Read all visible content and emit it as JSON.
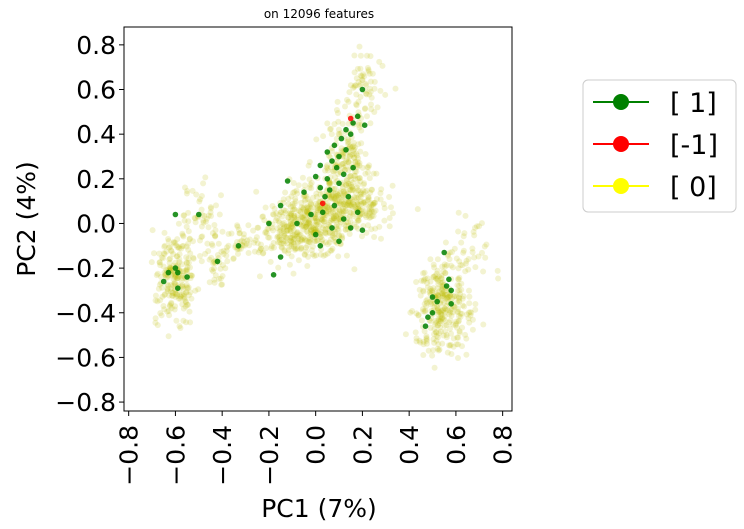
{
  "chart_data": {
    "type": "scatter",
    "title": "on 12096 features",
    "xlabel": "PC1 (7%)",
    "ylabel": "PC2 (4%)",
    "xlim": [
      -0.82,
      0.84
    ],
    "ylim": [
      -0.84,
      0.88
    ],
    "xticks": [
      -0.8,
      -0.6,
      -0.4,
      -0.2,
      0.0,
      0.2,
      0.4,
      0.6,
      0.8
    ],
    "xtick_labels": [
      "−0.8",
      "−0.6",
      "−0.4",
      "−0.2",
      "0.0",
      "0.2",
      "0.4",
      "0.6",
      "0.8"
    ],
    "yticks": [
      0.8,
      0.6,
      0.4,
      0.2,
      0.0,
      -0.2,
      -0.4,
      -0.6,
      -0.8
    ],
    "ytick_labels": [
      "0.8",
      "0.6",
      "0.4",
      "0.2",
      "0.0",
      "−0.2",
      "−0.4",
      "−0.6",
      "−0.8"
    ],
    "grid": false,
    "legend_position": "outside-right",
    "series": [
      {
        "name": "[ 0]",
        "color": "#bfbf00",
        "clusters": [
          {
            "cx": 0.0,
            "cy": 0.02,
            "sx": 0.09,
            "sy": 0.08,
            "n": 380
          },
          {
            "cx": 0.13,
            "cy": 0.28,
            "sx": 0.05,
            "sy": 0.13,
            "n": 220
          },
          {
            "cx": 0.2,
            "cy": 0.62,
            "sx": 0.04,
            "sy": 0.08,
            "n": 60
          },
          {
            "cx": 0.18,
            "cy": 0.08,
            "sx": 0.06,
            "sy": 0.06,
            "n": 140
          },
          {
            "cx": -0.12,
            "cy": -0.05,
            "sx": 0.06,
            "sy": 0.06,
            "n": 120
          },
          {
            "cx": -0.6,
            "cy": -0.24,
            "sx": 0.04,
            "sy": 0.1,
            "n": 220
          },
          {
            "cx": -0.5,
            "cy": 0.05,
            "sx": 0.04,
            "sy": 0.08,
            "n": 50
          },
          {
            "cx": -0.42,
            "cy": -0.18,
            "sx": 0.03,
            "sy": 0.07,
            "n": 40
          },
          {
            "cx": -0.3,
            "cy": -0.08,
            "sx": 0.03,
            "sy": 0.05,
            "n": 40
          },
          {
            "cx": 0.55,
            "cy": -0.37,
            "sx": 0.06,
            "sy": 0.1,
            "n": 300
          },
          {
            "cx": 0.65,
            "cy": -0.12,
            "sx": 0.05,
            "sy": 0.08,
            "n": 40
          }
        ]
      },
      {
        "name": "[ 1]",
        "color": "#008000",
        "points": [
          [
            0.0,
            0.21
          ],
          [
            0.02,
            0.26
          ],
          [
            0.05,
            0.2
          ],
          [
            0.07,
            0.28
          ],
          [
            0.08,
            0.35
          ],
          [
            0.1,
            0.3
          ],
          [
            0.12,
            0.22
          ],
          [
            0.15,
            0.4
          ],
          [
            0.16,
            0.45
          ],
          [
            0.18,
            0.48
          ],
          [
            0.13,
            0.42
          ],
          [
            0.11,
            0.38
          ],
          [
            0.09,
            0.25
          ],
          [
            0.06,
            0.15
          ],
          [
            0.04,
            0.12
          ],
          [
            0.03,
            0.05
          ],
          [
            0.08,
            0.08
          ],
          [
            0.12,
            0.02
          ],
          [
            0.15,
            -0.02
          ],
          [
            0.18,
            0.05
          ],
          [
            0.21,
            0.44
          ],
          [
            0.2,
            0.6
          ],
          [
            0.05,
            0.32
          ],
          [
            0.14,
            0.12
          ],
          [
            0.1,
            0.18
          ],
          [
            -0.05,
            0.14
          ],
          [
            -0.02,
            0.04
          ],
          [
            0.0,
            -0.05
          ],
          [
            -0.15,
            0.08
          ],
          [
            -0.12,
            0.19
          ],
          [
            -0.08,
            0.0
          ],
          [
            -0.2,
            0.0
          ],
          [
            -0.15,
            -0.15
          ],
          [
            -0.18,
            -0.23
          ],
          [
            0.02,
            -0.1
          ],
          [
            0.1,
            -0.08
          ],
          [
            0.2,
            -0.03
          ],
          [
            0.07,
            -0.02
          ],
          [
            0.16,
            0.25
          ],
          [
            0.13,
            0.33
          ],
          [
            0.02,
            0.16
          ],
          [
            -0.6,
            0.04
          ],
          [
            -0.5,
            0.04
          ],
          [
            -0.63,
            -0.22
          ],
          [
            -0.6,
            -0.2
          ],
          [
            -0.59,
            -0.22
          ],
          [
            -0.65,
            -0.26
          ],
          [
            -0.55,
            -0.24
          ],
          [
            -0.59,
            -0.29
          ],
          [
            -0.42,
            -0.17
          ],
          [
            -0.33,
            -0.1
          ],
          [
            0.55,
            -0.13
          ],
          [
            0.56,
            -0.28
          ],
          [
            0.57,
            -0.25
          ],
          [
            0.58,
            -0.3
          ],
          [
            0.5,
            -0.33
          ],
          [
            0.52,
            -0.35
          ],
          [
            0.5,
            -0.4
          ],
          [
            0.48,
            -0.42
          ],
          [
            0.47,
            -0.46
          ],
          [
            0.58,
            -0.36
          ]
        ]
      },
      {
        "name": "[-1]",
        "color": "#ff0000",
        "points": [
          [
            0.15,
            0.47
          ],
          [
            0.03,
            0.09
          ]
        ]
      }
    ],
    "legend": [
      {
        "label": "[ 1]",
        "color": "#008000"
      },
      {
        "label": "[-1]",
        "color": "#ff0000"
      },
      {
        "label": "[ 0]",
        "color": "#ffff00"
      }
    ]
  }
}
